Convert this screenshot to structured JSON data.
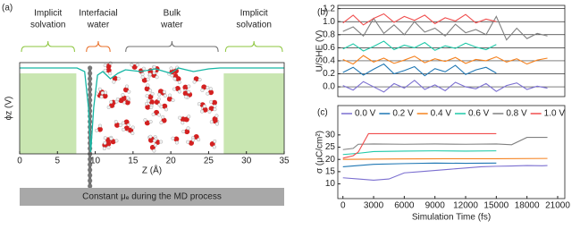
{
  "chart_data": [
    {
      "type": "schematic",
      "panel_label": "(a)",
      "regions": [
        {
          "label": [
            "Implicit",
            "solvation"
          ],
          "color": "#8dc63f"
        },
        {
          "label": [
            "Interfacial",
            "water"
          ],
          "color": "#e8702a"
        },
        {
          "label": [
            "Bulk",
            "water"
          ],
          "color": "#707070"
        },
        {
          "label": [
            "Implicit",
            "solvation"
          ],
          "color": "#8dc63f"
        }
      ],
      "xlabel": "Z (Å)",
      "ylabel": "ϕz (V)",
      "xlim": [
        0,
        35
      ],
      "xticks": [
        0,
        5,
        10,
        15,
        20,
        25,
        30,
        35
      ],
      "footer": "Constant μₑ during the MD process"
    },
    {
      "type": "line",
      "panel_label": "(b)",
      "ylabel": "U/SHE (V)",
      "xlim": [
        -500,
        21700
      ],
      "ylim": [
        -0.15,
        1.25
      ],
      "yticks": [
        {
          "value": 0,
          "label": "0.0"
        },
        0.2,
        0.4,
        0.6,
        0.8,
        {
          "value": 1,
          "label": "1.0"
        },
        1.2
      ],
      "grid": true,
      "series": [
        {
          "color": "#7b6fd0",
          "x": [
            0,
            1000,
            2000,
            3000,
            4000,
            5000,
            6000,
            7000,
            8000,
            9000,
            10000,
            11000,
            12000,
            13000,
            14000,
            15000,
            16000,
            17000,
            18000,
            19000,
            20000
          ],
          "values": [
            0.02,
            -0.05,
            0.08,
            0.0,
            -0.08,
            0.05,
            -0.02,
            0.1,
            -0.04,
            0.03,
            -0.06,
            0.07,
            0.0,
            -0.03,
            0.05,
            -0.07,
            0.02,
            0.06,
            -0.04,
            0.01,
            -0.02
          ]
        },
        {
          "color": "#1f77b4",
          "x": [
            0,
            1000,
            2000,
            3000,
            4000,
            5000,
            6000,
            7000,
            8000,
            9000,
            10000,
            11000,
            12000,
            13000,
            14000,
            15000
          ],
          "values": [
            0.22,
            0.3,
            0.18,
            0.27,
            0.35,
            0.2,
            0.25,
            0.31,
            0.17,
            0.28,
            0.23,
            0.33,
            0.19,
            0.26,
            0.3,
            0.21
          ]
        },
        {
          "color": "#f5821f",
          "x": [
            0,
            1000,
            2000,
            3000,
            4000,
            5000,
            6000,
            7000,
            8000,
            9000,
            10000,
            11000,
            12000,
            13000,
            14000,
            15000,
            16000,
            17000,
            18000,
            19000,
            20000
          ],
          "values": [
            0.42,
            0.35,
            0.48,
            0.38,
            0.44,
            0.36,
            0.41,
            0.47,
            0.37,
            0.43,
            0.39,
            0.45,
            0.36,
            0.42,
            0.4,
            0.46,
            0.38,
            0.43,
            0.35,
            0.41,
            0.44
          ]
        },
        {
          "color": "#1fc9a8",
          "x": [
            0,
            1000,
            2000,
            3000,
            4000,
            5000,
            6000,
            7000,
            8000,
            9000,
            10000,
            11000,
            12000,
            13000,
            14000,
            15000
          ],
          "values": [
            0.58,
            0.66,
            0.55,
            0.62,
            0.7,
            0.57,
            0.64,
            0.6,
            0.68,
            0.56,
            0.63,
            0.59,
            0.67,
            0.61,
            0.57,
            0.65
          ]
        },
        {
          "color": "#808080",
          "x": [
            0,
            1000,
            2000,
            3000,
            4000,
            5000,
            6000,
            7000,
            8000,
            9000,
            10000,
            11000,
            12000,
            13000,
            14000,
            15000,
            16000,
            17000,
            18000,
            19000,
            20000
          ],
          "values": [
            0.85,
            0.92,
            0.78,
            1.05,
            0.82,
            0.95,
            0.8,
            1.0,
            0.84,
            0.9,
            0.78,
            0.96,
            0.83,
            0.88,
            0.8,
            1.08,
            0.72,
            0.9,
            0.74,
            0.82,
            0.78
          ]
        },
        {
          "color": "#f04e4e",
          "x": [
            0,
            1000,
            2000,
            3000,
            4000,
            5000,
            6000,
            7000,
            8000,
            9000,
            10000,
            11000,
            12000,
            13000,
            14000,
            15000
          ],
          "values": [
            0.98,
            1.1,
            0.95,
            1.05,
            1.12,
            0.99,
            1.08,
            1.02,
            1.1,
            0.97,
            1.06,
            1.01,
            1.11,
            0.98,
            1.04,
            1.0
          ]
        }
      ]
    },
    {
      "type": "line",
      "panel_label": "(c)",
      "ylabel": "σ (μC/cm²)",
      "xlabel": "Simulation Time (fs)",
      "xlim": [
        -500,
        21700
      ],
      "ylim": [
        4,
        42
      ],
      "xticks": [
        0,
        3000,
        6000,
        9000,
        12000,
        15000,
        18000,
        21000
      ],
      "yticks": [
        10,
        15,
        20,
        25,
        30
      ],
      "legend": "top",
      "series": [
        {
          "name": "0.0 V",
          "color": "#7b6fd0",
          "x": [
            0,
            1500,
            3000,
            4500,
            6000,
            7500,
            9000,
            10500,
            12000,
            13500,
            15000,
            16500,
            18000,
            19500,
            20000
          ],
          "values": [
            12.5,
            12,
            11.5,
            12,
            14.5,
            15,
            15.5,
            16,
            16.5,
            17,
            17.2,
            17.3,
            17.5,
            17.4,
            17.5
          ]
        },
        {
          "name": "0.2 V",
          "color": "#1f77b4",
          "x": [
            0,
            1500,
            3000,
            6000,
            9000,
            12000,
            15000
          ],
          "values": [
            17,
            17.5,
            18,
            18.3,
            18.5,
            18.4,
            18.5
          ]
        },
        {
          "name": "0.4 V",
          "color": "#f5821f",
          "x": [
            0,
            5000,
            10000,
            15000,
            20000
          ],
          "values": [
            20,
            20.2,
            20.3,
            20.3,
            20.4
          ]
        },
        {
          "name": "0.6 V",
          "color": "#1fc9a8",
          "x": [
            0,
            1500,
            3000,
            6000,
            9000,
            12000,
            15000
          ],
          "values": [
            22,
            22.5,
            23.2,
            23.4,
            23.5,
            23.4,
            23.5
          ]
        },
        {
          "name": "0.8 V",
          "color": "#808080",
          "x": [
            0,
            1000,
            1500,
            3000,
            6000,
            9000,
            12000,
            15000,
            16500,
            18000,
            20000
          ],
          "values": [
            24,
            24.5,
            26.2,
            26.3,
            26.2,
            26.3,
            26.2,
            26.3,
            26,
            29,
            29
          ]
        },
        {
          "name": "1.0 V",
          "color": "#f04e4e",
          "x": [
            0,
            1000,
            1500,
            2500,
            3000,
            6000,
            9000,
            12000,
            15000
          ],
          "values": [
            20.5,
            21.5,
            23,
            30.5,
            30.5,
            30.5,
            30.5,
            30.5,
            30.5
          ]
        }
      ]
    }
  ]
}
